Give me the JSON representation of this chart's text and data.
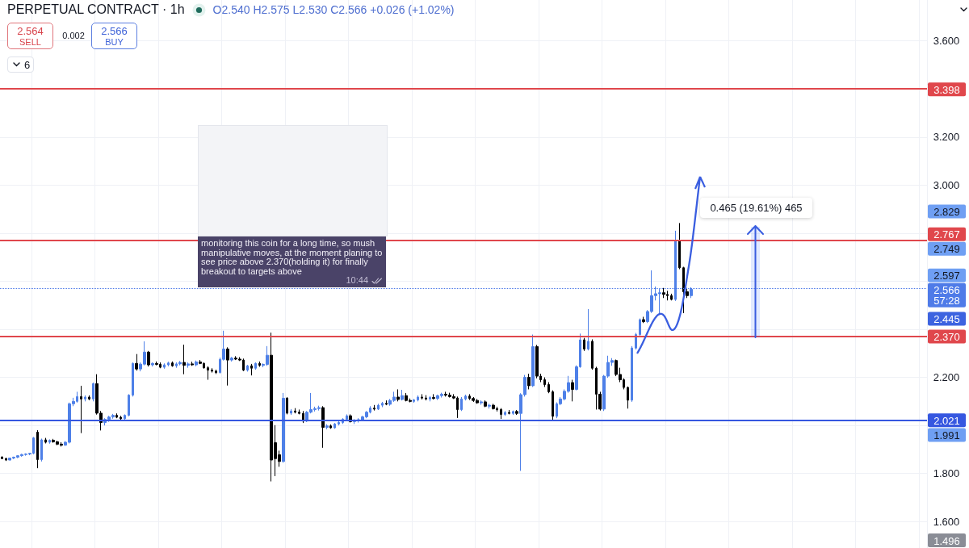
{
  "chart_data": {
    "type": "candlestick",
    "title": "PERPETUAL CONTRACT · 1h",
    "subtitle": "O2.540 H2.575 L2.530 C2.566 +0.026 (+1.02%)",
    "categories": [
      null,
      null,
      null,
      null,
      null,
      null,
      null,
      null,
      null,
      null,
      null,
      null,
      null,
      null,
      null,
      null,
      null,
      null,
      null,
      null,
      null,
      null,
      null,
      null,
      null,
      null,
      null,
      null,
      null,
      null,
      null,
      null,
      null,
      null,
      null,
      null,
      null,
      null,
      null,
      null,
      null,
      null,
      null,
      null,
      null,
      null,
      null,
      null,
      null,
      null,
      null,
      null,
      null,
      null,
      null,
      null,
      null,
      null,
      null,
      null,
      null,
      null,
      null,
      null,
      null,
      null,
      null,
      null,
      null,
      null,
      null,
      null,
      null,
      null,
      null,
      null,
      null,
      null,
      null,
      null,
      null,
      null,
      null,
      null,
      null,
      null,
      null,
      null,
      null,
      null,
      null,
      null,
      null,
      null,
      null,
      null,
      null,
      null,
      null,
      null,
      null,
      null,
      null,
      null,
      null,
      null,
      null,
      null,
      null,
      null,
      null,
      null,
      null,
      null,
      null,
      null,
      null,
      null,
      null,
      null,
      null,
      null,
      null,
      null,
      null,
      null,
      null,
      null,
      null,
      null,
      null,
      null,
      null,
      null,
      null,
      null,
      null,
      null,
      null,
      null,
      null,
      null,
      null,
      null,
      null,
      null,
      null,
      null,
      null,
      null,
      null,
      null,
      null,
      null,
      null,
      null,
      null,
      null,
      null,
      null,
      null,
      null,
      null,
      null,
      null,
      null,
      null,
      null,
      null,
      null,
      null,
      null,
      null,
      null,
      null,
      null,
      null,
      null,
      null,
      null,
      null,
      null,
      null,
      null,
      null,
      null,
      null,
      null,
      null,
      null,
      null,
      null,
      null,
      null,
      null,
      null,
      null,
      null,
      null,
      null,
      null,
      null,
      null,
      null,
      null,
      null,
      null,
      null,
      null,
      null,
      null,
      null,
      null,
      null,
      null,
      null,
      null,
      null,
      null,
      null,
      null,
      null,
      null,
      null,
      null,
      null,
      null,
      null,
      null,
      null,
      null,
      null,
      null,
      null
    ],
    "ohlc": [
      [
        1.868,
        1.872,
        1.86,
        1.862
      ],
      [
        1.862,
        1.866,
        1.852,
        1.856
      ],
      [
        1.856,
        1.866,
        1.854,
        1.864
      ],
      [
        1.864,
        1.87,
        1.86,
        1.868
      ],
      [
        1.868,
        1.876,
        1.864,
        1.874
      ],
      [
        1.874,
        1.882,
        1.87,
        1.879
      ],
      [
        1.879,
        1.884,
        1.874,
        1.881
      ],
      [
        1.881,
        1.886,
        1.876,
        1.884
      ],
      [
        1.884,
        1.952,
        1.88,
        1.948
      ],
      [
        1.972,
        1.98,
        1.822,
        1.858
      ],
      [
        1.858,
        1.945,
        1.85,
        1.94
      ],
      [
        1.94,
        1.948,
        1.925,
        1.93
      ],
      [
        1.93,
        1.942,
        1.924,
        1.938
      ],
      [
        1.938,
        1.944,
        1.928,
        1.932
      ],
      [
        1.932,
        1.936,
        1.918,
        1.922
      ],
      [
        1.922,
        1.93,
        1.912,
        1.918
      ],
      [
        1.918,
        1.935,
        1.915,
        1.93
      ],
      [
        1.93,
        2.095,
        1.925,
        2.09
      ],
      [
        2.09,
        2.115,
        2.08,
        2.1
      ],
      [
        2.1,
        2.14,
        2.095,
        2.12
      ],
      [
        2.12,
        2.165,
        1.968,
        2.11
      ],
      [
        2.11,
        2.125,
        2.1,
        2.118
      ],
      [
        2.118,
        2.125,
        2.105,
        2.11
      ],
      [
        2.11,
        2.178,
        2.1,
        2.174
      ],
      [
        2.174,
        2.213,
        2.045,
        2.051
      ],
      [
        2.051,
        2.06,
        1.979,
        2.012
      ],
      [
        2.012,
        2.03,
        2.0,
        2.025
      ],
      [
        2.025,
        2.04,
        2.015,
        2.035
      ],
      [
        2.035,
        2.048,
        2.028,
        2.042
      ],
      [
        2.042,
        2.05,
        2.03,
        2.034
      ],
      [
        2.034,
        2.04,
        2.022,
        2.028
      ],
      [
        2.028,
        2.046,
        2.024,
        2.042
      ],
      [
        2.042,
        2.13,
        2.038,
        2.126
      ],
      [
        2.126,
        2.262,
        2.12,
        2.258
      ],
      [
        2.258,
        2.297,
        2.228,
        2.235
      ],
      [
        2.235,
        2.262,
        2.225,
        2.255
      ],
      [
        2.255,
        2.35,
        2.25,
        2.305
      ],
      [
        2.305,
        2.31,
        2.245,
        2.252
      ],
      [
        2.252,
        2.262,
        2.245,
        2.258
      ],
      [
        2.258,
        2.266,
        2.25,
        2.254
      ],
      [
        2.254,
        2.262,
        2.238,
        2.242
      ],
      [
        2.242,
        2.258,
        2.236,
        2.252
      ],
      [
        2.252,
        2.265,
        2.246,
        2.26
      ],
      [
        2.26,
        2.266,
        2.244,
        2.248
      ],
      [
        2.248,
        2.262,
        2.24,
        2.256
      ],
      [
        2.256,
        2.268,
        2.25,
        2.262
      ],
      [
        2.262,
        2.336,
        2.213,
        2.25
      ],
      [
        2.25,
        2.262,
        2.24,
        2.256
      ],
      [
        2.256,
        2.265,
        2.248,
        2.252
      ],
      [
        2.252,
        2.27,
        2.246,
        2.264
      ],
      [
        2.264,
        2.272,
        2.255,
        2.258
      ],
      [
        2.258,
        2.262,
        2.236,
        2.24
      ],
      [
        2.24,
        2.246,
        2.19,
        2.23
      ],
      [
        2.23,
        2.238,
        2.22,
        2.226
      ],
      [
        2.226,
        2.232,
        2.214,
        2.22
      ],
      [
        2.22,
        2.282,
        2.216,
        2.275
      ],
      [
        2.275,
        2.394,
        2.27,
        2.318
      ],
      [
        2.318,
        2.325,
        2.166,
        2.272
      ],
      [
        2.272,
        2.285,
        2.266,
        2.28
      ],
      [
        2.28,
        2.288,
        2.272,
        2.276
      ],
      [
        2.276,
        2.284,
        2.268,
        2.272
      ],
      [
        2.272,
        2.278,
        2.226,
        2.23
      ],
      [
        2.23,
        2.252,
        2.224,
        2.248
      ],
      [
        2.248,
        2.256,
        2.208,
        2.238
      ],
      [
        2.238,
        2.262,
        2.232,
        2.258
      ],
      [
        2.258,
        2.266,
        2.244,
        2.25
      ],
      [
        2.25,
        2.258,
        2.242,
        2.254
      ],
      [
        2.254,
        2.33,
        2.248,
        2.292
      ],
      [
        2.292,
        2.386,
        1.767,
        1.856
      ],
      [
        1.928,
        2.001,
        1.789,
        1.862
      ],
      [
        1.878,
        1.895,
        1.828,
        1.85
      ],
      [
        1.85,
        2.135,
        1.845,
        2.113
      ],
      [
        2.113,
        2.118,
        2.046,
        2.051
      ],
      [
        2.051,
        2.068,
        2.044,
        2.06
      ],
      [
        2.06,
        2.072,
        2.05,
        2.055
      ],
      [
        2.055,
        2.066,
        2.046,
        2.05
      ],
      [
        2.05,
        2.06,
        2.01,
        2.018
      ],
      [
        2.018,
        2.06,
        2.014,
        2.055
      ],
      [
        2.055,
        2.135,
        2.05,
        2.066
      ],
      [
        2.066,
        2.078,
        2.058,
        2.07
      ],
      [
        2.07,
        2.082,
        2.062,
        2.074
      ],
      [
        2.074,
        2.08,
        1.907,
        1.992
      ],
      [
        1.992,
        2.005,
        1.984,
        1.998
      ],
      [
        1.998,
        2.004,
        1.986,
        1.99
      ],
      [
        1.99,
        2.01,
        1.986,
        2.006
      ],
      [
        2.006,
        2.018,
        2.0,
        2.012
      ],
      [
        2.012,
        2.03,
        2.006,
        2.026
      ],
      [
        2.026,
        2.046,
        2.02,
        2.04
      ],
      [
        2.04,
        2.046,
        2.012,
        2.016
      ],
      [
        2.016,
        2.026,
        2.006,
        2.02
      ],
      [
        2.02,
        2.03,
        2.012,
        2.024
      ],
      [
        2.024,
        2.04,
        2.018,
        2.036
      ],
      [
        2.036,
        2.06,
        2.03,
        2.055
      ],
      [
        2.055,
        2.08,
        2.05,
        2.072
      ],
      [
        2.072,
        2.085,
        2.062,
        2.068
      ],
      [
        2.068,
        2.09,
        2.064,
        2.084
      ],
      [
        2.084,
        2.098,
        2.076,
        2.092
      ],
      [
        2.092,
        2.104,
        2.084,
        2.088
      ],
      [
        2.088,
        2.11,
        2.082,
        2.104
      ],
      [
        2.104,
        2.14,
        2.098,
        2.118
      ],
      [
        2.118,
        2.15,
        2.1,
        2.108
      ],
      [
        2.108,
        2.148,
        2.104,
        2.124
      ],
      [
        2.124,
        2.135,
        2.1,
        2.104
      ],
      [
        2.104,
        2.112,
        2.096,
        2.1
      ],
      [
        2.1,
        2.11,
        2.094,
        2.106
      ],
      [
        2.106,
        2.125,
        2.1,
        2.118
      ],
      [
        2.118,
        2.13,
        2.108,
        2.114
      ],
      [
        2.114,
        2.126,
        2.104,
        2.11
      ],
      [
        2.11,
        2.122,
        2.1,
        2.116
      ],
      [
        2.116,
        2.13,
        2.108,
        2.112
      ],
      [
        2.112,
        2.128,
        2.106,
        2.124
      ],
      [
        2.124,
        2.136,
        2.116,
        2.13
      ],
      [
        2.13,
        2.14,
        2.12,
        2.126
      ],
      [
        2.126,
        2.136,
        2.116,
        2.12
      ],
      [
        2.12,
        2.13,
        2.11,
        2.114
      ],
      [
        2.114,
        2.12,
        2.031,
        2.066
      ],
      [
        2.066,
        2.118,
        2.06,
        2.11
      ],
      [
        2.11,
        2.128,
        2.104,
        2.122
      ],
      [
        2.122,
        2.13,
        2.106,
        2.112
      ],
      [
        2.112,
        2.118,
        2.098,
        2.104
      ],
      [
        2.104,
        2.11,
        2.09,
        2.094
      ],
      [
        2.094,
        2.104,
        2.086,
        2.098
      ],
      [
        2.098,
        2.104,
        2.076,
        2.08
      ],
      [
        2.08,
        2.09,
        2.07,
        2.084
      ],
      [
        2.084,
        2.09,
        2.066,
        2.07
      ],
      [
        2.07,
        2.078,
        2.058,
        2.066
      ],
      [
        2.066,
        2.072,
        2.027,
        2.046
      ],
      [
        2.046,
        2.06,
        2.04,
        2.054
      ],
      [
        2.054,
        2.064,
        2.046,
        2.05
      ],
      [
        2.05,
        2.062,
        2.044,
        2.058
      ],
      [
        2.058,
        2.064,
        2.044,
        2.05
      ],
      [
        2.05,
        2.134,
        1.811,
        2.128
      ],
      [
        2.128,
        2.21,
        2.12,
        2.2
      ],
      [
        2.2,
        2.215,
        2.15,
        2.165
      ],
      [
        2.165,
        2.378,
        2.16,
        2.328
      ],
      [
        2.328,
        2.335,
        2.196,
        2.205
      ],
      [
        2.205,
        2.215,
        2.18,
        2.19
      ],
      [
        2.19,
        2.2,
        2.16,
        2.17
      ],
      [
        2.17,
        2.18,
        2.134,
        2.14
      ],
      [
        2.14,
        2.146,
        2.021,
        2.038
      ],
      [
        2.038,
        2.096,
        2.03,
        2.09
      ],
      [
        2.09,
        2.118,
        2.084,
        2.11
      ],
      [
        2.11,
        2.15,
        2.104,
        2.142
      ],
      [
        2.142,
        2.206,
        2.136,
        2.178
      ],
      [
        2.178,
        2.19,
        2.1,
        2.15
      ],
      [
        2.15,
        2.25,
        2.146,
        2.244
      ],
      [
        2.244,
        2.382,
        2.24,
        2.356
      ],
      [
        2.356,
        2.364,
        2.31,
        2.318
      ],
      [
        2.318,
        2.484,
        2.312,
        2.35
      ],
      [
        2.35,
        2.358,
        2.232,
        2.238
      ],
      [
        2.238,
        2.244,
        2.066,
        2.13
      ],
      [
        2.13,
        2.14,
        2.062,
        2.068
      ],
      [
        2.068,
        2.21,
        2.06,
        2.205
      ],
      [
        2.205,
        2.29,
        2.198,
        2.262
      ],
      [
        2.262,
        2.28,
        2.248,
        2.27
      ],
      [
        2.27,
        2.274,
        2.205,
        2.212
      ],
      [
        2.212,
        2.24,
        2.18,
        2.19
      ],
      [
        2.19,
        2.196,
        2.15,
        2.158
      ],
      [
        2.158,
        2.162,
        2.07,
        2.105
      ],
      [
        2.105,
        2.33,
        2.098,
        2.322
      ],
      [
        2.322,
        2.385,
        2.316,
        2.378
      ],
      [
        2.378,
        2.445,
        2.37,
        2.44
      ],
      [
        2.44,
        2.452,
        2.426,
        2.432
      ],
      [
        2.432,
        2.48,
        2.426,
        2.474
      ],
      [
        2.474,
        2.645,
        2.468,
        2.54
      ],
      [
        2.54,
        2.578,
        2.52,
        2.548
      ],
      [
        2.548,
        2.57,
        2.46,
        2.552
      ],
      [
        2.552,
        2.572,
        2.53,
        2.545
      ],
      [
        2.545,
        2.56,
        2.52,
        2.54
      ],
      [
        2.54,
        2.548,
        2.52,
        2.524
      ],
      [
        2.524,
        2.81,
        2.518,
        2.766
      ],
      [
        2.766,
        2.842,
        2.65,
        2.656
      ],
      [
        2.656,
        2.66,
        2.467,
        2.556
      ],
      [
        2.556,
        2.572,
        2.53,
        2.54
      ],
      [
        2.54,
        2.575,
        2.53,
        2.566
      ],
      null,
      null,
      null,
      null,
      null,
      null,
      null,
      null,
      null,
      null,
      null,
      null,
      null,
      null,
      null,
      null,
      null,
      null,
      null,
      null,
      null,
      null,
      null,
      null,
      null,
      null,
      null,
      null,
      null,
      null,
      null,
      null,
      null,
      null,
      null,
      null,
      null,
      null,
      null,
      null,
      null,
      null,
      null,
      null,
      null,
      null,
      null,
      null,
      null,
      null,
      null,
      null,
      null,
      null,
      null,
      null,
      null,
      null,
      null
    ],
    "colors": [
      "#000000",
      "#000000",
      "#4e80e8",
      "#4e80e8",
      "#4e80e8",
      "#4e80e8",
      "#4e80e8",
      "#4e80e8",
      "#4e80e8",
      "#000000",
      "#4e80e8",
      "#000000",
      "#4e80e8",
      "#000000",
      "#000000",
      "#000000",
      "#4e80e8",
      "#4e80e8",
      "#4e80e8",
      "#4e80e8",
      "#000000",
      "#4e80e8",
      "#000000",
      "#4e80e8",
      "#000000",
      "#000000",
      "#4e80e8",
      "#4e80e8",
      "#4e80e8",
      "#000000",
      "#000000",
      "#4e80e8",
      "#4e80e8",
      "#4e80e8",
      "#000000",
      "#4e80e8",
      "#4e80e8",
      "#000000",
      "#4e80e8",
      "#000000",
      "#000000",
      "#4e80e8",
      "#4e80e8",
      "#000000",
      "#4e80e8",
      "#4e80e8",
      "#000000",
      "#4e80e8",
      "#000000",
      "#4e80e8",
      "#000000",
      "#000000",
      "#000000",
      "#000000",
      "#000000",
      "#4e80e8",
      "#4e80e8",
      "#000000",
      "#4e80e8",
      "#000000",
      "#000000",
      "#000000",
      "#4e80e8",
      "#000000",
      "#4e80e8",
      "#000000",
      "#4e80e8",
      "#4e80e8",
      "#000000",
      "#000000",
      "#000000",
      "#4e80e8",
      "#000000",
      "#4e80e8",
      "#000000",
      "#000000",
      "#000000",
      "#4e80e8",
      "#4e80e8",
      "#4e80e8",
      "#4e80e8",
      "#000000",
      "#4e80e8",
      "#000000",
      "#4e80e8",
      "#4e80e8",
      "#4e80e8",
      "#4e80e8",
      "#000000",
      "#4e80e8",
      "#4e80e8",
      "#4e80e8",
      "#4e80e8",
      "#4e80e8",
      "#000000",
      "#4e80e8",
      "#4e80e8",
      "#000000",
      "#4e80e8",
      "#4e80e8",
      "#000000",
      "#4e80e8",
      "#000000",
      "#000000",
      "#4e80e8",
      "#4e80e8",
      "#000000",
      "#000000",
      "#4e80e8",
      "#000000",
      "#4e80e8",
      "#4e80e8",
      "#000000",
      "#000000",
      "#000000",
      "#000000",
      "#4e80e8",
      "#4e80e8",
      "#000000",
      "#000000",
      "#000000",
      "#4e80e8",
      "#000000",
      "#4e80e8",
      "#000000",
      "#000000",
      "#000000",
      "#4e80e8",
      "#000000",
      "#4e80e8",
      "#000000",
      "#4e80e8",
      "#4e80e8",
      "#000000",
      "#4e80e8",
      "#000000",
      "#000000",
      "#000000",
      "#000000",
      "#000000",
      "#4e80e8",
      "#4e80e8",
      "#4e80e8",
      "#4e80e8",
      "#000000",
      "#4e80e8",
      "#4e80e8",
      "#000000",
      "#4e80e8",
      "#000000",
      "#000000",
      "#000000",
      "#4e80e8",
      "#4e80e8",
      "#4e80e8",
      "#000000",
      "#000000",
      "#000000",
      "#000000",
      "#4e80e8",
      "#4e80e8",
      "#4e80e8",
      "#000000",
      "#4e80e8",
      "#4e80e8",
      "#4e80e8",
      "#4e80e8",
      "#000000",
      "#000000",
      "#000000",
      "#4e80e8",
      "#000000",
      "#000000",
      "#000000",
      "#4e80e8",
      null,
      null,
      null,
      null,
      null,
      null,
      null,
      null,
      null,
      null,
      null,
      null,
      null,
      null,
      null,
      null,
      null,
      null,
      null,
      null,
      null,
      null,
      null,
      null,
      null,
      null,
      null,
      null,
      null,
      null,
      null,
      null,
      null,
      null,
      null,
      null,
      null,
      null,
      null,
      null,
      null,
      null,
      null,
      null,
      null,
      null,
      null,
      null,
      null,
      null,
      null,
      null,
      null,
      null,
      null,
      null,
      null,
      null,
      null
    ],
    "ylim": [
      1.49,
      3.77
    ],
    "yticks": [
      {
        "value": 1.6,
        "label": "1.600"
      },
      {
        "value": 1.8,
        "label": "1.800"
      },
      {
        "value": 2.0,
        "label": null
      },
      {
        "value": 2.2,
        "label": "2.200"
      },
      {
        "value": 2.4,
        "label": null
      },
      {
        "value": 2.6,
        "label": null
      },
      {
        "value": 2.8,
        "label": null
      },
      {
        "value": 3.0,
        "label": "3.000"
      },
      {
        "value": 3.2,
        "label": "3.200"
      },
      {
        "value": 3.4,
        "label": null
      },
      {
        "value": 3.6,
        "label": "3.600"
      }
    ],
    "grid": true,
    "tick_labels": "y",
    "ref_lines": [
      {
        "axis": "y",
        "value": 3.398,
        "label": "3.398",
        "color": "#e0474c"
      },
      {
        "axis": "y",
        "value": 2.767,
        "label": "2.767",
        "color": "#e0474c"
      },
      {
        "axis": "y",
        "value": 2.566,
        "label": "2.566\n57:28",
        "color": "#4f7be8",
        "line_style": "dotted"
      },
      {
        "axis": "y",
        "value": 2.37,
        "label": "2.370",
        "color": "#e0474c"
      },
      {
        "axis": "y",
        "value": 2.021,
        "label": "2.021",
        "color": "#3657e0"
      }
    ],
    "annotations": [
      "2.564\nSELL",
      "0.002",
      "2.566\nBUY",
      "6",
      "monitoring this coin for a long time, so mush manipulative moves, at the moment planing to see price above 2.370(holding it) for finally breakout to targets above",
      "10:44",
      "0.465 (19.61%) 465",
      "2.829",
      "2.749",
      "2.597",
      "2.445",
      "1.991",
      "1.496"
    ]
  }
}
